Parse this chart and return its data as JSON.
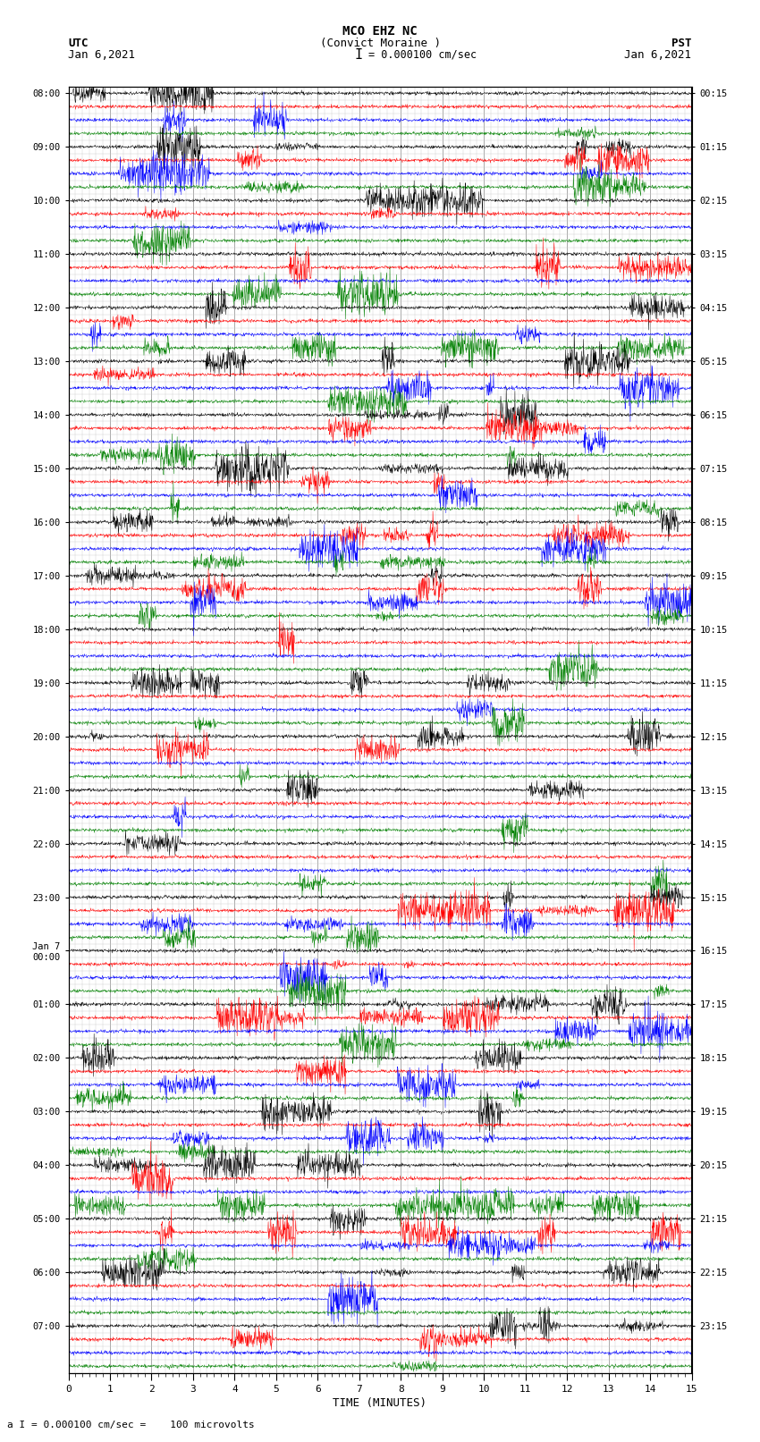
{
  "title_line1": "MCO EHZ NC",
  "title_line2": "(Convict Moraine )",
  "scale_label": "= 0.000100 cm/sec",
  "scale_bracket": "I",
  "bottom_label": "a I = 0.000100 cm/sec =    100 microvolts",
  "xlabel": "TIME (MINUTES)",
  "utc_header": "UTC",
  "utc_date": "Jan 6,2021",
  "pst_header": "PST",
  "pst_date": "Jan 6,2021",
  "utc_times": [
    "08:00",
    "",
    "",
    "",
    "09:00",
    "",
    "",
    "",
    "10:00",
    "",
    "",
    "",
    "11:00",
    "",
    "",
    "",
    "12:00",
    "",
    "",
    "",
    "13:00",
    "",
    "",
    "",
    "14:00",
    "",
    "",
    "",
    "15:00",
    "",
    "",
    "",
    "16:00",
    "",
    "",
    "",
    "17:00",
    "",
    "",
    "",
    "18:00",
    "",
    "",
    "",
    "19:00",
    "",
    "",
    "",
    "20:00",
    "",
    "",
    "",
    "21:00",
    "",
    "",
    "",
    "22:00",
    "",
    "",
    "",
    "23:00",
    "",
    "",
    "",
    "Jan 7\n00:00",
    "",
    "",
    "",
    "01:00",
    "",
    "",
    "",
    "02:00",
    "",
    "",
    "",
    "03:00",
    "",
    "",
    "",
    "04:00",
    "",
    "",
    "",
    "05:00",
    "",
    "",
    "",
    "06:00",
    "",
    "",
    "",
    "07:00",
    "",
    "",
    ""
  ],
  "pst_times": [
    "00:15",
    "",
    "",
    "",
    "01:15",
    "",
    "",
    "",
    "02:15",
    "",
    "",
    "",
    "03:15",
    "",
    "",
    "",
    "04:15",
    "",
    "",
    "",
    "05:15",
    "",
    "",
    "",
    "06:15",
    "",
    "",
    "",
    "07:15",
    "",
    "",
    "",
    "08:15",
    "",
    "",
    "",
    "09:15",
    "",
    "",
    "",
    "10:15",
    "",
    "",
    "",
    "11:15",
    "",
    "",
    "",
    "12:15",
    "",
    "",
    "",
    "13:15",
    "",
    "",
    "",
    "14:15",
    "",
    "",
    "",
    "15:15",
    "",
    "",
    "",
    "16:15",
    "",
    "",
    "",
    "17:15",
    "",
    "",
    "",
    "18:15",
    "",
    "",
    "",
    "19:15",
    "",
    "",
    "",
    "20:15",
    "",
    "",
    "",
    "21:15",
    "",
    "",
    "",
    "22:15",
    "",
    "",
    "",
    "23:15",
    "",
    "",
    ""
  ],
  "colors": [
    "black",
    "red",
    "blue",
    "green"
  ],
  "n_rows": 96,
  "minutes": 15,
  "bg_color": "#ffffff",
  "seed": 42,
  "n_samples": 1800,
  "base_noise": 0.012,
  "event_noise": 0.06
}
